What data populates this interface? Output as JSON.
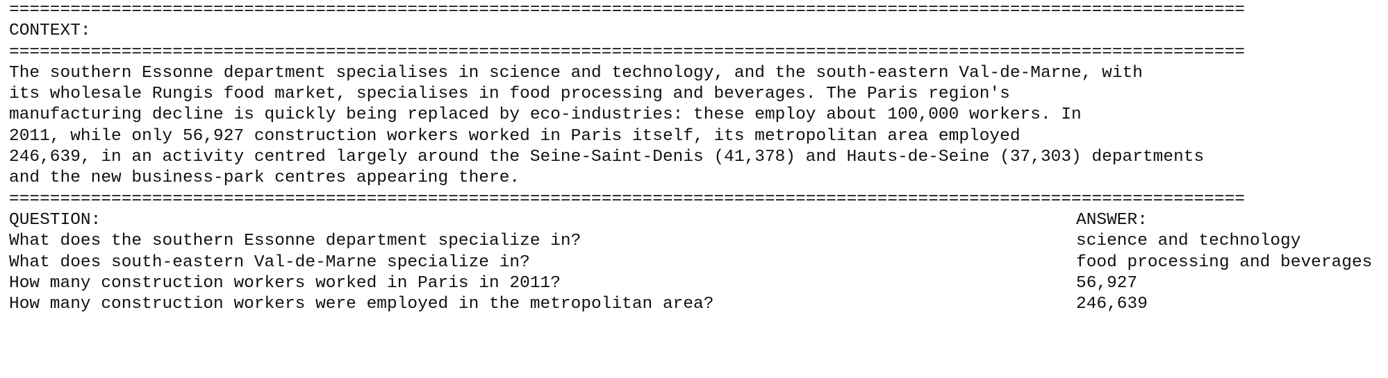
{
  "separator": "=========================================================================================================================",
  "context": {
    "heading": "CONTEXT:",
    "lines": [
      "The southern Essonne department specialises in science and technology, and the south-eastern Val-de-Marne, with",
      "its wholesale Rungis food market, specialises in food processing and beverages. The Paris region's",
      "manufacturing decline is quickly being replaced by eco-industries: these employ about 100,000 workers. In",
      "2011, while only 56,927 construction workers worked in Paris itself, its metropolitan area employed",
      "246,639, in an activity centred largely around the Seine-Saint-Denis (41,378) and Hauts-de-Seine (37,303) departments",
      "and the new business-park centres appearing there."
    ]
  },
  "qa": {
    "question_heading": "QUESTION:",
    "answer_heading": "ANSWER:",
    "rows": [
      {
        "question": "What does the southern Essonne department specialize in?",
        "answer": "science and technology"
      },
      {
        "question": "What does south-eastern Val-de-Marne specialize in?",
        "answer": "food processing and beverages"
      },
      {
        "question": "How many construction workers worked in Paris in 2011?",
        "answer": "56,927"
      },
      {
        "question": "How many construction workers were employed in the metropolitan area?",
        "answer": "246,639"
      }
    ]
  }
}
